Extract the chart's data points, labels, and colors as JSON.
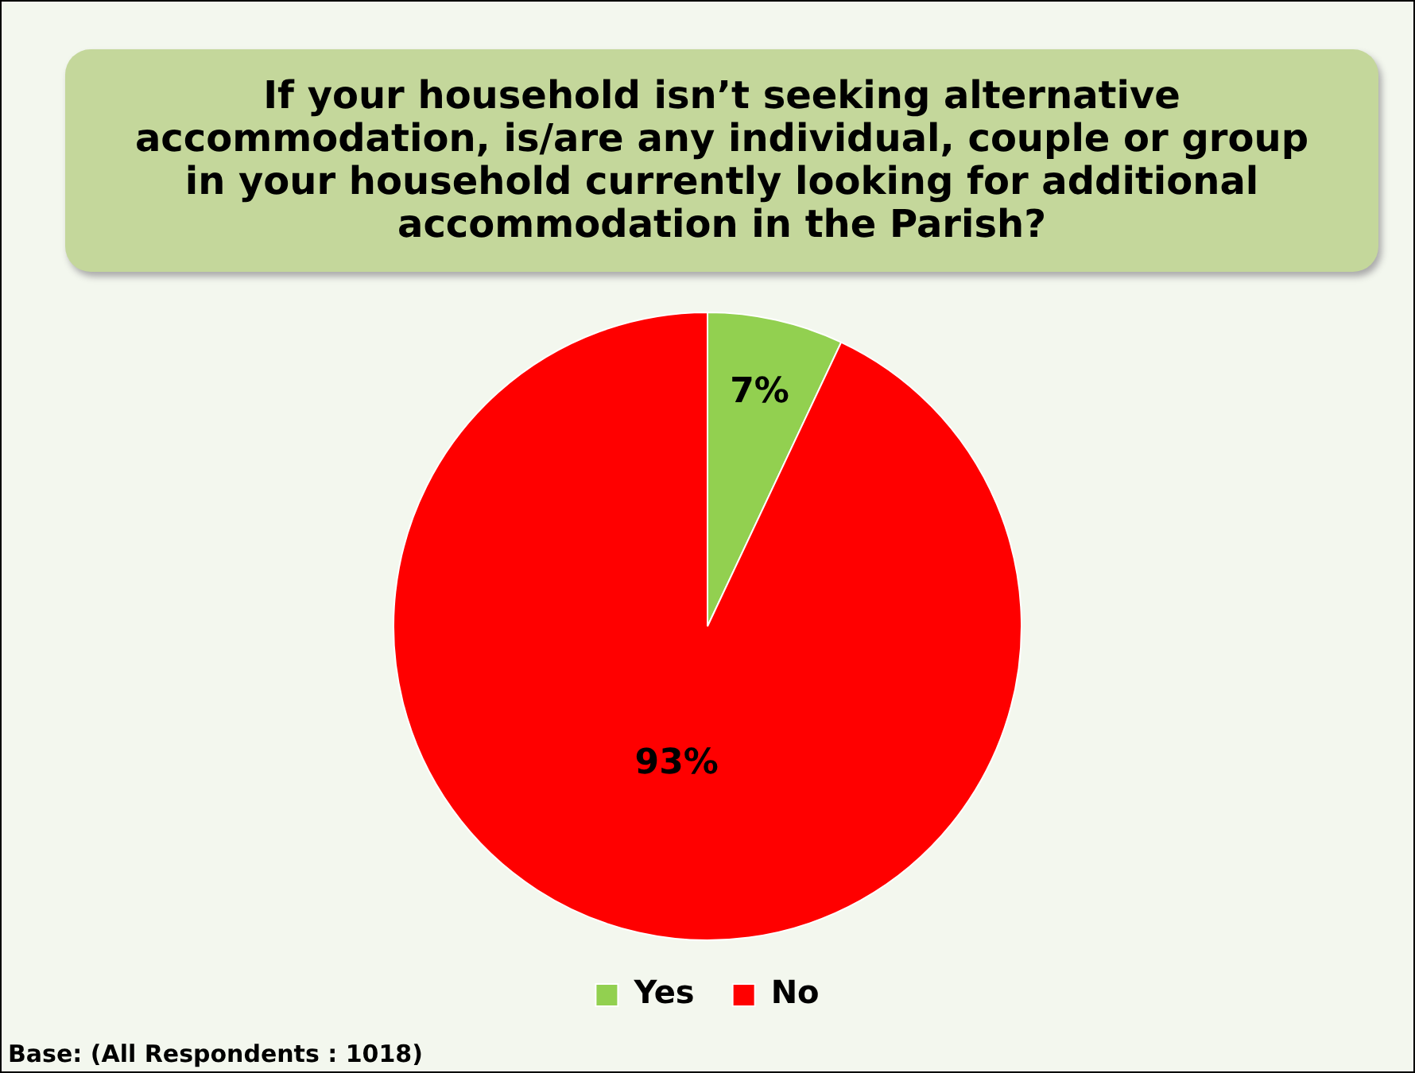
{
  "chart_data": {
    "type": "pie",
    "title": "If your household isn’t seeking alternative accommodation, is/are any individual, couple or group in your household currently looking for additional accommodation in the Parish?",
    "categories": [
      "Yes",
      "No"
    ],
    "values": [
      7,
      93
    ],
    "colors": [
      "#92d050",
      "#ff0000"
    ],
    "value_labels": [
      "7%",
      "93%"
    ],
    "legend": "bottom",
    "annotations": [
      "Base: (All Respondents : 1018)"
    ]
  }
}
